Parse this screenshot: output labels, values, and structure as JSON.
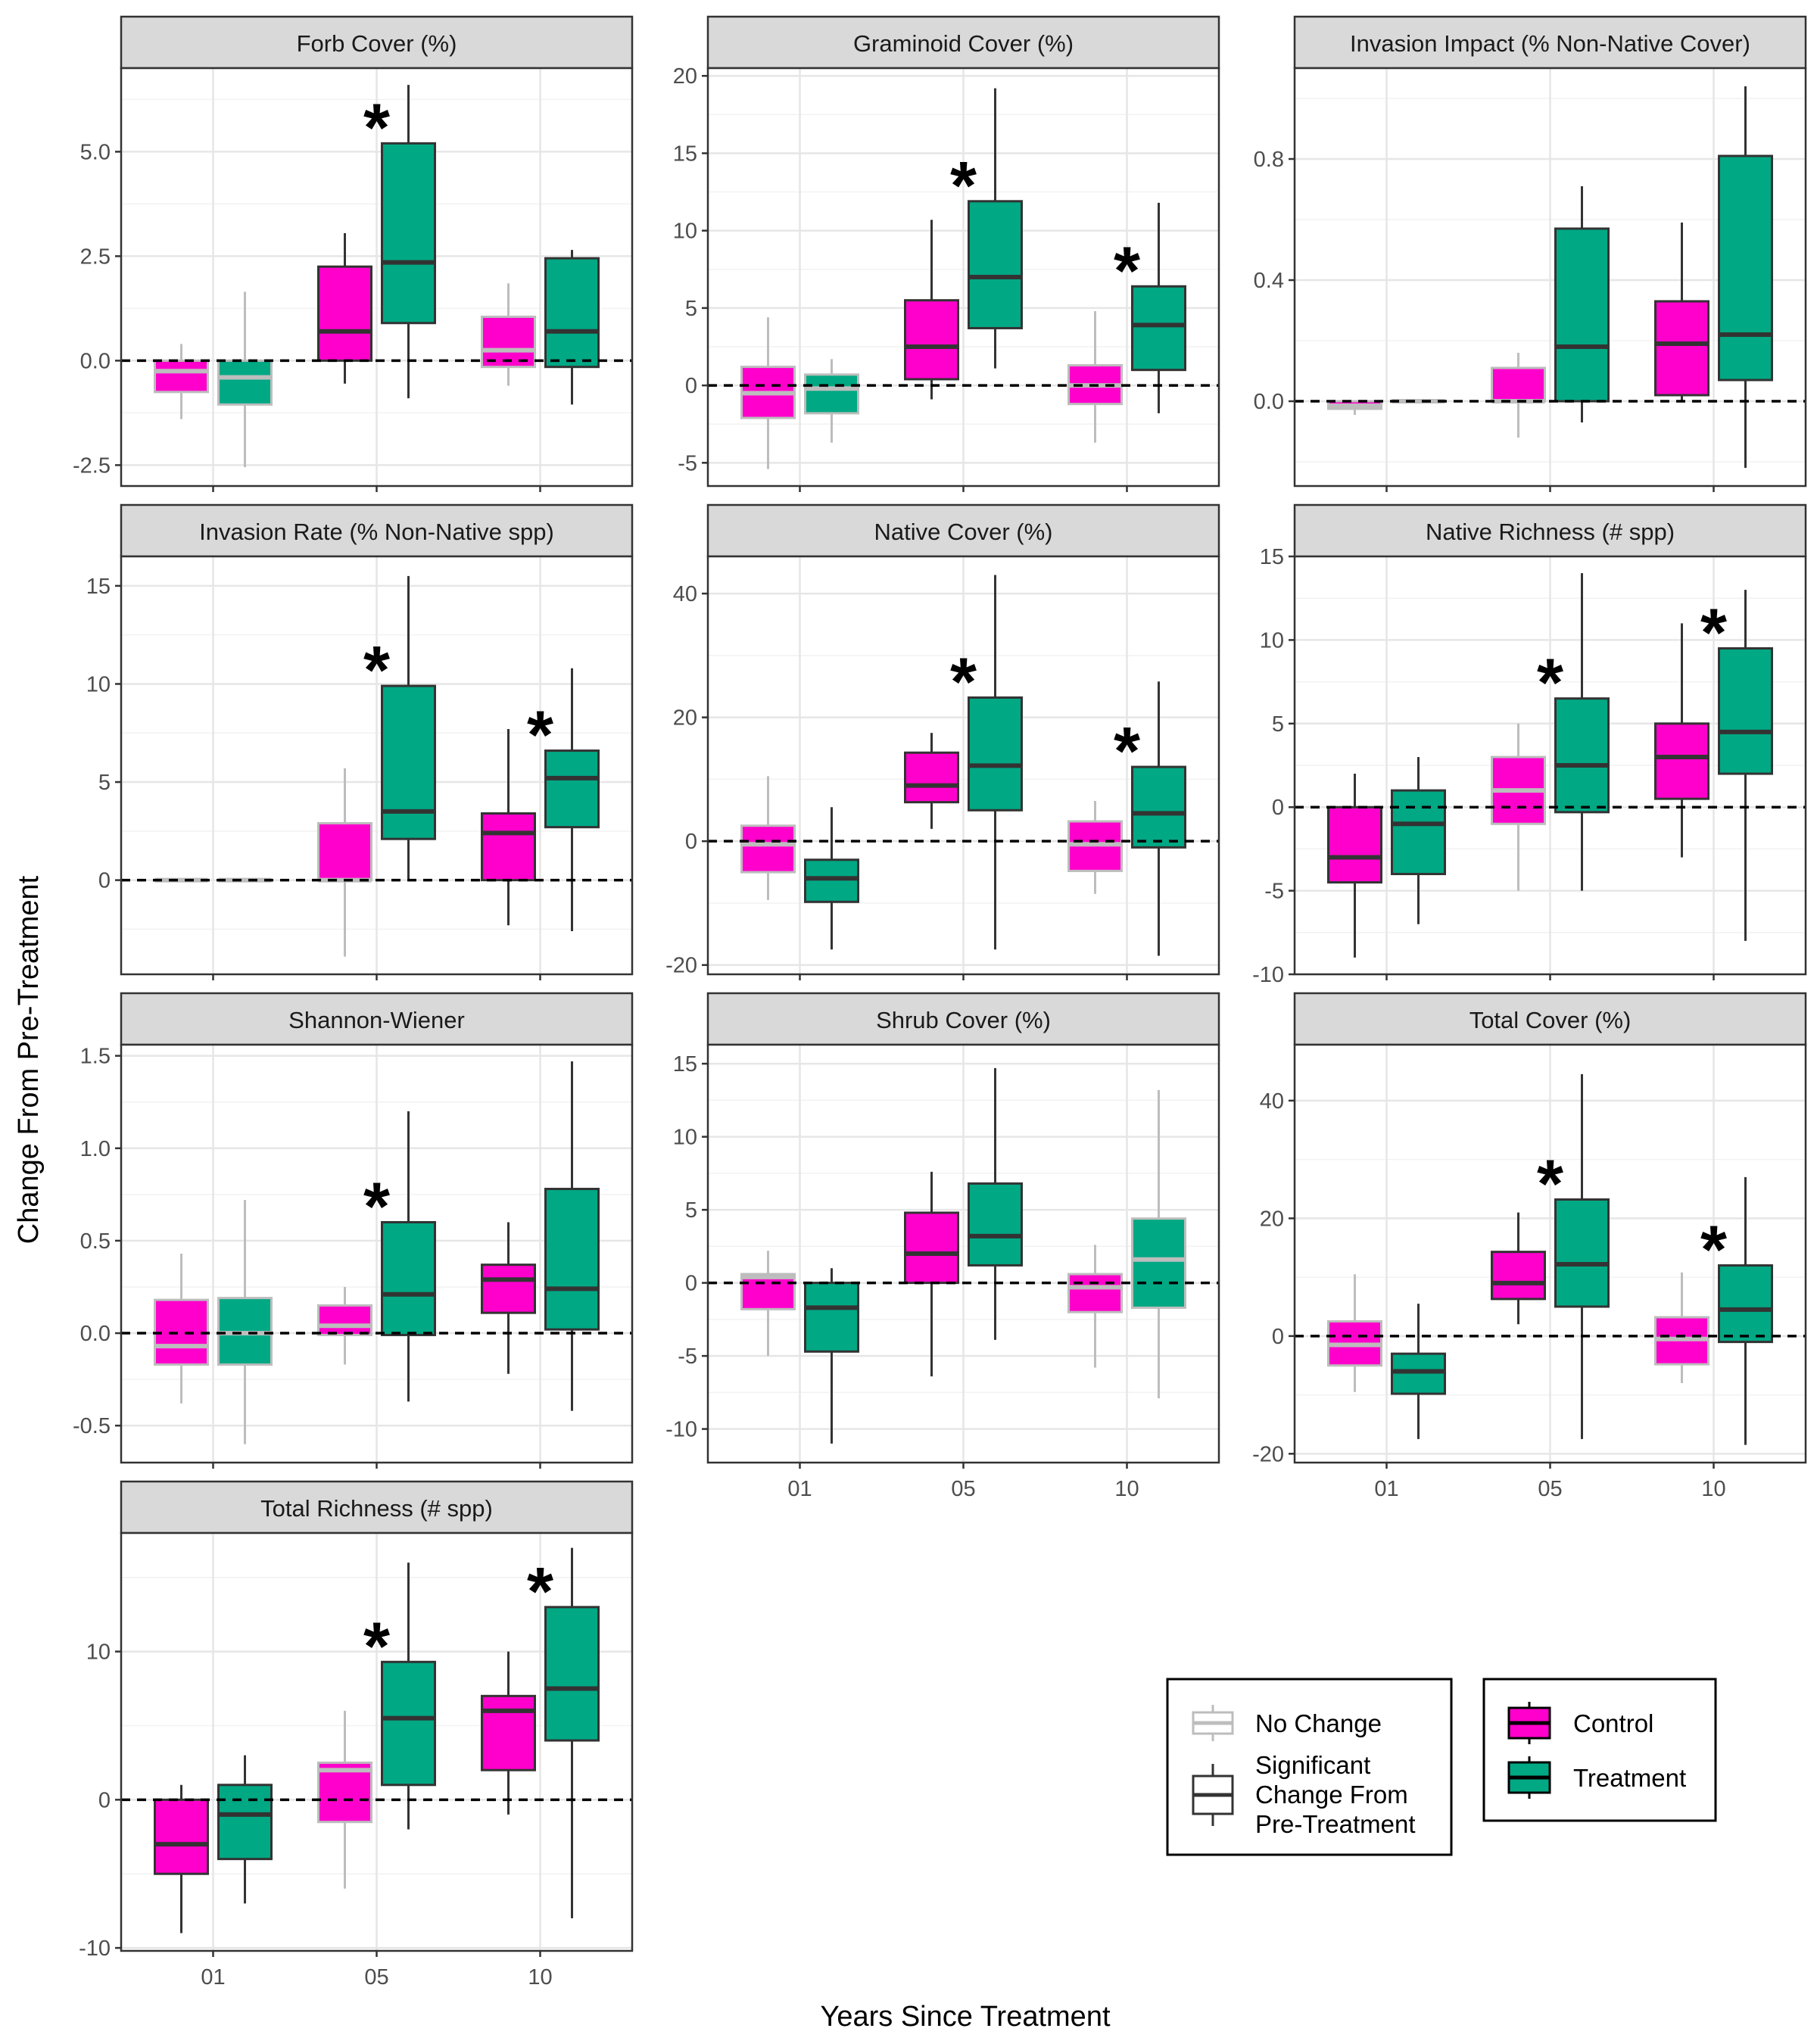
{
  "figure": {
    "ylabel": "Change From Pre-Treatment",
    "xlabel": "Years Since Treatment",
    "x_categories": [
      "01",
      "05",
      "10"
    ],
    "legend_significance": {
      "items": [
        {
          "key": "no_change",
          "label": "No Change"
        },
        {
          "key": "significant",
          "label_lines": [
            "Significant",
            "Change From",
            "Pre-Treatment"
          ]
        }
      ]
    },
    "legend_group": {
      "items": [
        {
          "key": "control",
          "label": "Control"
        },
        {
          "key": "treatment",
          "label": "Treatment"
        }
      ]
    },
    "significance_marker": "*"
  },
  "colors": {
    "control": "#ff00cc",
    "treatment": "#00a884",
    "no_change_outline": "#bdbdbd",
    "significant_outline": "#333333",
    "strip_fill": "#d9d9d9",
    "grid_major": "#e6e6e6",
    "grid_minor": "#f2f2f2"
  },
  "chart_data": [
    {
      "type": "boxplot",
      "title": "Forb Cover (%)",
      "ylim": [
        -3.0,
        7.0
      ],
      "yticks": [
        {
          "v": -2.5,
          "label": "-2.5"
        },
        {
          "v": 0,
          "label": "0.0"
        },
        {
          "v": 2.5,
          "label": "2.5"
        },
        {
          "v": 5,
          "label": "5.0"
        }
      ],
      "boxes": [
        {
          "year": "01",
          "group": "control",
          "sig": false,
          "min": -1.4,
          "q1": -0.75,
          "median": -0.25,
          "q3": 0.0,
          "max": 0.4
        },
        {
          "year": "01",
          "group": "treatment",
          "sig": false,
          "min": -2.55,
          "q1": -1.05,
          "median": -0.4,
          "q3": 0.0,
          "max": 1.65
        },
        {
          "year": "05",
          "group": "control",
          "sig": true,
          "min": -0.55,
          "q1": 0.0,
          "median": 0.7,
          "q3": 2.25,
          "max": 3.05
        },
        {
          "year": "05",
          "group": "treatment",
          "sig": true,
          "min": -0.9,
          "q1": 0.9,
          "median": 2.35,
          "q3": 5.2,
          "max": 6.6
        },
        {
          "year": "10",
          "group": "control",
          "sig": false,
          "min": -0.6,
          "q1": -0.15,
          "median": 0.25,
          "q3": 1.05,
          "max": 1.85
        },
        {
          "year": "10",
          "group": "treatment",
          "sig": true,
          "min": -1.05,
          "q1": -0.15,
          "median": 0.7,
          "q3": 2.45,
          "max": 2.65
        }
      ],
      "stars": [
        "05"
      ]
    },
    {
      "type": "boxplot",
      "title": "Graminoid Cover (%)",
      "ylim": [
        -6.5,
        20.5
      ],
      "yticks": [
        {
          "v": -5,
          "label": "-5"
        },
        {
          "v": 0,
          "label": "0"
        },
        {
          "v": 5,
          "label": "5"
        },
        {
          "v": 10,
          "label": "10"
        },
        {
          "v": 15,
          "label": "15"
        },
        {
          "v": 20,
          "label": "20"
        }
      ],
      "boxes": [
        {
          "year": "01",
          "group": "control",
          "sig": false,
          "min": -5.4,
          "q1": -2.1,
          "median": -0.5,
          "q3": 1.2,
          "max": 4.4
        },
        {
          "year": "01",
          "group": "treatment",
          "sig": false,
          "min": -3.7,
          "q1": -1.8,
          "median": -0.2,
          "q3": 0.7,
          "max": 1.7
        },
        {
          "year": "05",
          "group": "control",
          "sig": true,
          "min": -0.9,
          "q1": 0.4,
          "median": 2.5,
          "q3": 5.5,
          "max": 10.7
        },
        {
          "year": "05",
          "group": "treatment",
          "sig": true,
          "min": 1.1,
          "q1": 3.7,
          "median": 7.0,
          "q3": 11.9,
          "max": 19.2
        },
        {
          "year": "10",
          "group": "control",
          "sig": false,
          "min": -3.7,
          "q1": -1.2,
          "median": 0.0,
          "q3": 1.3,
          "max": 4.8
        },
        {
          "year": "10",
          "group": "treatment",
          "sig": true,
          "min": -1.8,
          "q1": 1.0,
          "median": 3.9,
          "q3": 6.4,
          "max": 11.8
        }
      ],
      "stars": [
        "05",
        "10"
      ]
    },
    {
      "type": "boxplot",
      "title": "Invasion Impact (% Non-Native Cover)",
      "ylim": [
        -0.28,
        1.1
      ],
      "yticks": [
        {
          "v": 0,
          "label": "0.0"
        },
        {
          "v": 0.4,
          "label": "0.4"
        },
        {
          "v": 0.8,
          "label": "0.8"
        }
      ],
      "boxes": [
        {
          "year": "01",
          "group": "control",
          "sig": false,
          "min": -0.045,
          "q1": -0.025,
          "median": -0.015,
          "q3": 0.0,
          "max": 0.0
        },
        {
          "year": "01",
          "group": "treatment",
          "sig": false,
          "min": 0.0,
          "q1": 0.0,
          "median": 0.0,
          "q3": 0.0,
          "max": 0.0
        },
        {
          "year": "05",
          "group": "control",
          "sig": false,
          "min": -0.12,
          "q1": 0.0,
          "median": 0.0,
          "q3": 0.11,
          "max": 0.16
        },
        {
          "year": "05",
          "group": "treatment",
          "sig": true,
          "min": -0.07,
          "q1": 0.0,
          "median": 0.18,
          "q3": 0.57,
          "max": 0.71
        },
        {
          "year": "10",
          "group": "control",
          "sig": true,
          "min": 0.0,
          "q1": 0.02,
          "median": 0.19,
          "q3": 0.33,
          "max": 0.59
        },
        {
          "year": "10",
          "group": "treatment",
          "sig": true,
          "min": -0.22,
          "q1": 0.07,
          "median": 0.22,
          "q3": 0.81,
          "max": 1.04
        }
      ],
      "stars": []
    },
    {
      "type": "boxplot",
      "title": "Invasion Rate (% Non-Native spp)",
      "ylim": [
        -4.8,
        16.5
      ],
      "yticks": [
        {
          "v": 0,
          "label": "0"
        },
        {
          "v": 5,
          "label": "5"
        },
        {
          "v": 10,
          "label": "10"
        },
        {
          "v": 15,
          "label": "15"
        }
      ],
      "boxes": [
        {
          "year": "01",
          "group": "control",
          "sig": false,
          "min": 0,
          "q1": 0,
          "median": 0,
          "q3": 0,
          "max": 0
        },
        {
          "year": "01",
          "group": "treatment",
          "sig": false,
          "min": 0,
          "q1": 0,
          "median": 0,
          "q3": 0,
          "max": 0
        },
        {
          "year": "05",
          "group": "control",
          "sig": false,
          "min": -3.9,
          "q1": 0.0,
          "median": 0.0,
          "q3": 2.9,
          "max": 5.7
        },
        {
          "year": "05",
          "group": "treatment",
          "sig": true,
          "min": 0.0,
          "q1": 2.1,
          "median": 3.5,
          "q3": 9.9,
          "max": 15.5
        },
        {
          "year": "10",
          "group": "control",
          "sig": true,
          "min": -2.3,
          "q1": 0.0,
          "median": 2.4,
          "q3": 3.4,
          "max": 7.7
        },
        {
          "year": "10",
          "group": "treatment",
          "sig": true,
          "min": -2.6,
          "q1": 2.7,
          "median": 5.2,
          "q3": 6.6,
          "max": 10.8
        }
      ],
      "stars": [
        "05",
        "10"
      ]
    },
    {
      "type": "boxplot",
      "title": "Native Cover (%)",
      "ylim": [
        -21.5,
        46.0
      ],
      "yticks": [
        {
          "v": -20,
          "label": "-20"
        },
        {
          "v": 0,
          "label": "0"
        },
        {
          "v": 20,
          "label": "20"
        },
        {
          "v": 40,
          "label": "40"
        }
      ],
      "boxes": [
        {
          "year": "01",
          "group": "control",
          "sig": false,
          "min": -9.5,
          "q1": -5.0,
          "median": -0.5,
          "q3": 2.5,
          "max": 10.5
        },
        {
          "year": "01",
          "group": "treatment",
          "sig": true,
          "min": -17.5,
          "q1": -9.8,
          "median": -6.0,
          "q3": -3.0,
          "max": 5.5
        },
        {
          "year": "05",
          "group": "control",
          "sig": true,
          "min": 2.0,
          "q1": 6.3,
          "median": 9.0,
          "q3": 14.3,
          "max": 17.5
        },
        {
          "year": "05",
          "group": "treatment",
          "sig": true,
          "min": -17.5,
          "q1": 5.0,
          "median": 12.2,
          "q3": 23.2,
          "max": 43.0
        },
        {
          "year": "10",
          "group": "control",
          "sig": false,
          "min": -8.5,
          "q1": -4.8,
          "median": -0.5,
          "q3": 3.2,
          "max": 6.5
        },
        {
          "year": "10",
          "group": "treatment",
          "sig": true,
          "min": -18.5,
          "q1": -1.0,
          "median": 4.5,
          "q3": 12.0,
          "max": 25.8
        }
      ],
      "stars": [
        "05",
        "10"
      ]
    },
    {
      "type": "boxplot",
      "title": "Native Richness (# spp)",
      "ylim": [
        -10.0,
        15.0
      ],
      "yticks": [
        {
          "v": -10,
          "label": "-10"
        },
        {
          "v": -5,
          "label": "-5"
        },
        {
          "v": 0,
          "label": "0"
        },
        {
          "v": 5,
          "label": "5"
        },
        {
          "v": 10,
          "label": "10"
        },
        {
          "v": 15,
          "label": "15"
        }
      ],
      "boxes": [
        {
          "year": "01",
          "group": "control",
          "sig": true,
          "min": -9.0,
          "q1": -4.5,
          "median": -3.0,
          "q3": 0.0,
          "max": 2.0
        },
        {
          "year": "01",
          "group": "treatment",
          "sig": true,
          "min": -7.0,
          "q1": -4.0,
          "median": -1.0,
          "q3": 1.0,
          "max": 3.0
        },
        {
          "year": "05",
          "group": "control",
          "sig": false,
          "min": -5.0,
          "q1": -1.0,
          "median": 1.0,
          "q3": 3.0,
          "max": 5.0
        },
        {
          "year": "05",
          "group": "treatment",
          "sig": true,
          "min": -5.0,
          "q1": -0.3,
          "median": 2.5,
          "q3": 6.5,
          "max": 14.0
        },
        {
          "year": "10",
          "group": "control",
          "sig": true,
          "min": -3.0,
          "q1": 0.5,
          "median": 3.0,
          "q3": 5.0,
          "max": 11.0
        },
        {
          "year": "10",
          "group": "treatment",
          "sig": true,
          "min": -8.0,
          "q1": 2.0,
          "median": 4.5,
          "q3": 9.5,
          "max": 13.0
        }
      ],
      "stars": [
        "05",
        "10"
      ]
    },
    {
      "type": "boxplot",
      "title": "Shannon-Wiener",
      "ylim": [
        -0.7,
        1.56
      ],
      "yticks": [
        {
          "v": -0.5,
          "label": "-0.5"
        },
        {
          "v": 0,
          "label": "0.0"
        },
        {
          "v": 0.5,
          "label": "0.5"
        },
        {
          "v": 1.0,
          "label": "1.0"
        },
        {
          "v": 1.5,
          "label": "1.5"
        }
      ],
      "boxes": [
        {
          "year": "01",
          "group": "control",
          "sig": false,
          "min": -0.38,
          "q1": -0.17,
          "median": -0.07,
          "q3": 0.18,
          "max": 0.43
        },
        {
          "year": "01",
          "group": "treatment",
          "sig": false,
          "min": -0.6,
          "q1": -0.17,
          "median": 0.0,
          "q3": 0.19,
          "max": 0.72
        },
        {
          "year": "05",
          "group": "control",
          "sig": false,
          "min": -0.17,
          "q1": -0.01,
          "median": 0.04,
          "q3": 0.15,
          "max": 0.25
        },
        {
          "year": "05",
          "group": "treatment",
          "sig": true,
          "min": -0.37,
          "q1": -0.01,
          "median": 0.21,
          "q3": 0.6,
          "max": 1.2
        },
        {
          "year": "10",
          "group": "control",
          "sig": true,
          "min": -0.22,
          "q1": 0.11,
          "median": 0.29,
          "q3": 0.37,
          "max": 0.6
        },
        {
          "year": "10",
          "group": "treatment",
          "sig": true,
          "min": -0.42,
          "q1": 0.02,
          "median": 0.24,
          "q3": 0.78,
          "max": 1.47
        }
      ],
      "stars": [
        "05"
      ]
    },
    {
      "type": "boxplot",
      "title": "Shrub Cover (%)",
      "ylim": [
        -12.3,
        16.3
      ],
      "yticks": [
        {
          "v": -10,
          "label": "-10"
        },
        {
          "v": -5,
          "label": "-5"
        },
        {
          "v": 0,
          "label": "0"
        },
        {
          "v": 5,
          "label": "5"
        },
        {
          "v": 10,
          "label": "10"
        },
        {
          "v": 15,
          "label": "15"
        }
      ],
      "boxes": [
        {
          "year": "01",
          "group": "control",
          "sig": false,
          "min": -5.0,
          "q1": -1.8,
          "median": 0.4,
          "q3": 0.6,
          "max": 2.2
        },
        {
          "year": "01",
          "group": "treatment",
          "sig": true,
          "min": -11.0,
          "q1": -4.7,
          "median": -1.7,
          "q3": 0.0,
          "max": 1.0
        },
        {
          "year": "05",
          "group": "control",
          "sig": true,
          "min": -6.4,
          "q1": 0.0,
          "median": 2.0,
          "q3": 4.8,
          "max": 7.6
        },
        {
          "year": "05",
          "group": "treatment",
          "sig": true,
          "min": -3.9,
          "q1": 1.2,
          "median": 3.2,
          "q3": 6.8,
          "max": 14.7
        },
        {
          "year": "10",
          "group": "control",
          "sig": false,
          "min": -5.8,
          "q1": -2.0,
          "median": -0.3,
          "q3": 0.6,
          "max": 2.6
        },
        {
          "year": "10",
          "group": "treatment",
          "sig": false,
          "min": -7.9,
          "q1": -1.7,
          "median": 1.6,
          "q3": 4.4,
          "max": 13.2
        }
      ],
      "stars": []
    },
    {
      "type": "boxplot",
      "title": "Total Cover (%)",
      "ylim": [
        -21.5,
        49.5
      ],
      "yticks": [
        {
          "v": -20,
          "label": "-20"
        },
        {
          "v": 0,
          "label": "0"
        },
        {
          "v": 20,
          "label": "20"
        },
        {
          "v": 40,
          "label": "40"
        }
      ],
      "boxes": [
        {
          "year": "01",
          "group": "control",
          "sig": false,
          "min": -9.5,
          "q1": -5.0,
          "median": -1.5,
          "q3": 2.5,
          "max": 10.5
        },
        {
          "year": "01",
          "group": "treatment",
          "sig": true,
          "min": -17.5,
          "q1": -9.8,
          "median": -6.0,
          "q3": -3.0,
          "max": 5.5
        },
        {
          "year": "05",
          "group": "control",
          "sig": true,
          "min": 2.0,
          "q1": 6.3,
          "median": 9.0,
          "q3": 14.3,
          "max": 21.0
        },
        {
          "year": "05",
          "group": "treatment",
          "sig": true,
          "min": -17.5,
          "q1": 5.0,
          "median": 12.2,
          "q3": 23.2,
          "max": 44.5
        },
        {
          "year": "10",
          "group": "control",
          "sig": false,
          "min": -8.0,
          "q1": -4.8,
          "median": -0.5,
          "q3": 3.2,
          "max": 10.8
        },
        {
          "year": "10",
          "group": "treatment",
          "sig": true,
          "min": -18.5,
          "q1": -1.0,
          "median": 4.5,
          "q3": 12.0,
          "max": 27.0
        }
      ],
      "stars": [
        "05",
        "10"
      ]
    },
    {
      "type": "boxplot",
      "title": "Total Richness (# spp)",
      "ylim": [
        -10.2,
        18.0
      ],
      "yticks": [
        {
          "v": -10,
          "label": "-10"
        },
        {
          "v": 0,
          "label": "0"
        },
        {
          "v": 10,
          "label": "10"
        }
      ],
      "boxes": [
        {
          "year": "01",
          "group": "control",
          "sig": true,
          "min": -9.0,
          "q1": -5.0,
          "median": -3.0,
          "q3": 0.0,
          "max": 1.0
        },
        {
          "year": "01",
          "group": "treatment",
          "sig": true,
          "min": -7.0,
          "q1": -4.0,
          "median": -1.0,
          "q3": 1.0,
          "max": 3.0
        },
        {
          "year": "05",
          "group": "control",
          "sig": false,
          "min": -6.0,
          "q1": -1.5,
          "median": 2.0,
          "q3": 2.5,
          "max": 6.0
        },
        {
          "year": "05",
          "group": "treatment",
          "sig": true,
          "min": -2.0,
          "q1": 1.0,
          "median": 5.5,
          "q3": 9.3,
          "max": 16.0
        },
        {
          "year": "10",
          "group": "control",
          "sig": true,
          "min": -1.0,
          "q1": 2.0,
          "median": 6.0,
          "q3": 7.0,
          "max": 10.0
        },
        {
          "year": "10",
          "group": "treatment",
          "sig": true,
          "min": -8.0,
          "q1": 4.0,
          "median": 7.5,
          "q3": 13.0,
          "max": 17.0
        }
      ],
      "stars": [
        "05",
        "10"
      ]
    }
  ]
}
